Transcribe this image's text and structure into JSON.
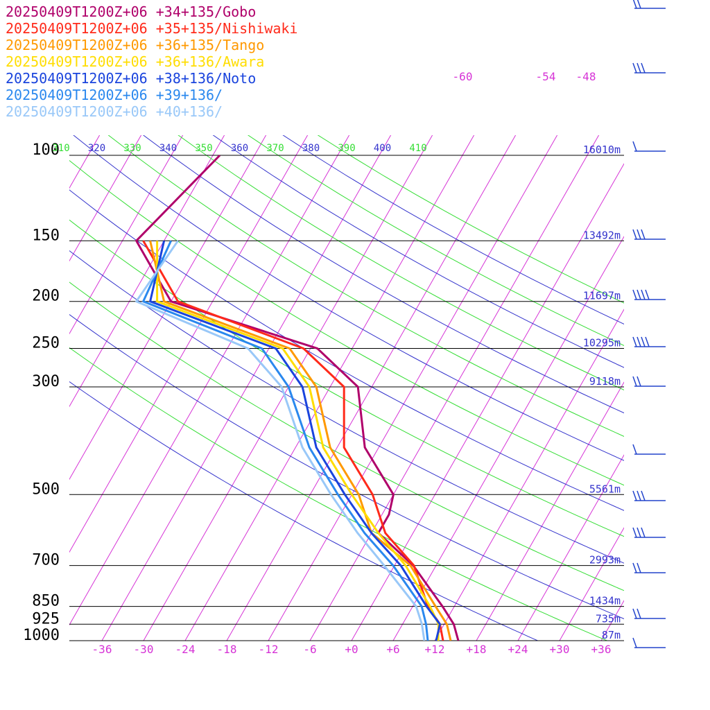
{
  "chart_data": {
    "type": "line",
    "title": "",
    "xlabel": "",
    "ylabel": "",
    "pressure_levels": [
      100,
      150,
      200,
      250,
      300,
      500,
      700,
      850,
      925,
      1000
    ],
    "pressure_labels": [
      "100",
      "150",
      "200",
      "250",
      "300",
      "500",
      "700",
      "850",
      "925",
      "1000"
    ],
    "height_labels": [
      "16010m",
      "13492m",
      "11697m",
      "10295m",
      "9118m",
      "5561m",
      "2993m",
      "1434m",
      "735m",
      "87m"
    ],
    "temperature_ticks": [
      -36,
      -30,
      -24,
      -18,
      -12,
      -6,
      0,
      6,
      12,
      18,
      24,
      30,
      36
    ],
    "temperature_tick_labels": [
      "-36",
      "-30",
      "-24",
      "-18",
      "-12",
      "-6",
      "+0",
      "+6",
      "+12",
      "+18",
      "+24",
      "+30",
      "+36"
    ],
    "upper_isotherm_labels": [
      "-60",
      "-54",
      "-48"
    ],
    "theta_labels": [
      "310",
      "320",
      "330",
      "340",
      "350",
      "360",
      "370",
      "380",
      "390",
      "400",
      "410"
    ],
    "colors": {
      "isotherm": "#d633d6",
      "theta_green": "#33dd33",
      "theta_blue": "#3333cc",
      "isobar": "#000000",
      "wind_barb": "#2244cc"
    },
    "series": [
      {
        "name": "20250409T1200Z+06 +34+135/Gobo",
        "color": "#b0006a",
        "points": [
          [
            1000,
            15.4
          ],
          [
            925,
            13.4
          ],
          [
            850,
            10.3
          ],
          [
            700,
            2.7
          ],
          [
            600,
            -5
          ],
          [
            550,
            -5
          ],
          [
            500,
            -6
          ],
          [
            400,
            -14
          ],
          [
            300,
            -20
          ],
          [
            250,
            -29
          ],
          [
            200,
            -54
          ],
          [
            150,
            -64
          ],
          [
            100,
            -59
          ]
        ]
      },
      {
        "name": "20250409T1200Z+06 +35+135/Nishiwaki",
        "color": "#ff2a1a",
        "points": [
          [
            1000,
            13.2
          ],
          [
            925,
            11.4
          ],
          [
            850,
            8.2
          ],
          [
            700,
            2.8
          ],
          [
            600,
            -4
          ],
          [
            500,
            -9
          ],
          [
            400,
            -17
          ],
          [
            300,
            -22
          ],
          [
            250,
            -31
          ],
          [
            200,
            -53
          ],
          [
            150,
            -63
          ]
        ]
      },
      {
        "name": "20250409T1200Z+06 +36+135/Tango",
        "color": "#ff9900",
        "points": [
          [
            1000,
            14.3
          ],
          [
            925,
            12.4
          ],
          [
            850,
            9.3
          ],
          [
            700,
            2.3
          ],
          [
            600,
            -6
          ],
          [
            500,
            -11
          ],
          [
            400,
            -19
          ],
          [
            300,
            -26
          ],
          [
            250,
            -33
          ],
          [
            200,
            -55
          ],
          [
            150,
            -62
          ]
        ]
      },
      {
        "name": "20250409T1200Z+06 +36+136/Awara",
        "color": "#ffdd00",
        "points": [
          [
            1000,
            12.5
          ],
          [
            925,
            11.2
          ],
          [
            850,
            8.5
          ],
          [
            700,
            1.6
          ],
          [
            600,
            -5
          ],
          [
            500,
            -12
          ],
          [
            400,
            -20
          ],
          [
            300,
            -27
          ],
          [
            250,
            -34
          ],
          [
            200,
            -56
          ],
          [
            150,
            -61
          ]
        ]
      },
      {
        "name": "20250409T1200Z+06 +38+136/Noto",
        "color": "#1a44dd",
        "points": [
          [
            1000,
            12.2
          ],
          [
            925,
            11.4
          ],
          [
            850,
            8.0
          ],
          [
            700,
            0.9
          ],
          [
            600,
            -6
          ],
          [
            500,
            -13
          ],
          [
            400,
            -21
          ],
          [
            300,
            -28
          ],
          [
            250,
            -35
          ],
          [
            200,
            -57
          ],
          [
            150,
            -60
          ]
        ]
      },
      {
        "name": "20250409T1200Z+06 +39+136/",
        "color": "#2a88ee",
        "points": [
          [
            1000,
            11.0
          ],
          [
            925,
            9.4
          ],
          [
            850,
            7.3
          ],
          [
            700,
            -0.2
          ],
          [
            600,
            -7
          ],
          [
            500,
            -14
          ],
          [
            400,
            -22
          ],
          [
            300,
            -30
          ],
          [
            250,
            -37
          ],
          [
            200,
            -58
          ],
          [
            150,
            -59
          ]
        ]
      },
      {
        "name": "20250409T1200Z+06 +40+136/",
        "color": "#99c8f8",
        "points": [
          [
            1000,
            10.5
          ],
          [
            925,
            8.8
          ],
          [
            850,
            6.5
          ],
          [
            700,
            -1.5
          ],
          [
            600,
            -8
          ],
          [
            500,
            -15
          ],
          [
            400,
            -23
          ],
          [
            300,
            -31
          ],
          [
            250,
            -39
          ],
          [
            200,
            -59
          ],
          [
            150,
            -58
          ]
        ]
      }
    ]
  }
}
